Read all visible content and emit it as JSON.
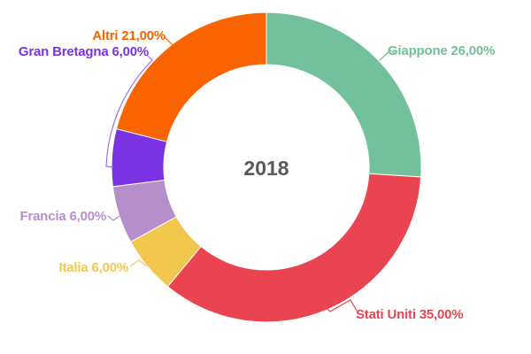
{
  "chart_data": {
    "type": "pie",
    "subtype": "donut",
    "center_label": "2018",
    "unit": "%",
    "number_format": "italian-comma-two-decimals",
    "direction": "clockwise",
    "start_angle_deg": 0,
    "inner_radius_ratio": 0.66,
    "legend_position": "none",
    "slices": [
      {
        "label": "Giappone",
        "value": 26,
        "display_label": "Giappone 26,00%",
        "color": "#72C09C"
      },
      {
        "label": "Stati Uniti",
        "value": 35,
        "display_label": "Stati Uniti 35,00%",
        "color": "#E94450"
      },
      {
        "label": "Italia",
        "value": 6,
        "display_label": "Italia 6,00%",
        "color": "#F2C74D"
      },
      {
        "label": "Francia",
        "value": 6,
        "display_label": "Francia 6,00%",
        "color": "#B48FCC"
      },
      {
        "label": "Gran Bretagna",
        "value": 6,
        "display_label": "Gran Bretagna 6,00%",
        "color": "#7A32E2"
      },
      {
        "label": "Altri",
        "value": 21,
        "display_label": "Altri 21,00%",
        "color": "#F96400"
      }
    ],
    "leader_line_color_gran_bretagna": "#9B70E8"
  },
  "colors": {
    "background": "#FFFFFF",
    "slice_border": "#FFFFFF",
    "center_label": "#59595B"
  }
}
